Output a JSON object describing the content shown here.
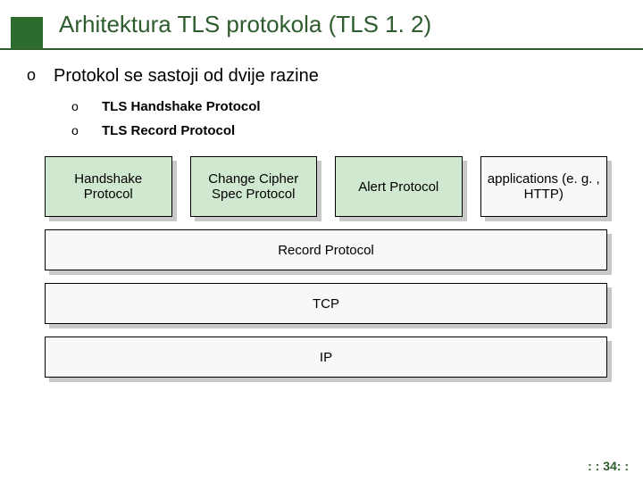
{
  "title": "Arhitektura TLS protokola (TLS 1. 2)",
  "main_bullet": "Protokol se sastoji od dvije razine",
  "sub_bullets": {
    "item1": "TLS Handshake Protocol",
    "item2": "TLS Record Protocol"
  },
  "diagram": {
    "top_row": {
      "box1": "Handshake Protocol",
      "box2": "Change Cipher Spec Protocol",
      "box3": "Alert Protocol",
      "box4": "applications (e. g. , HTTP)"
    },
    "layer1": "Record Protocol",
    "layer2": "TCP",
    "layer3": "IP"
  },
  "page_number": ": : 34: :",
  "colors": {
    "title_color": "#2e5c2e",
    "logo_bg": "#2e6b2e",
    "green_box": "#d0e8d0",
    "light_box": "#f8f8f8",
    "shadow": "#c8c8c8",
    "border": "#000000"
  },
  "fonts": {
    "title_size": 26,
    "bullet_size": 20,
    "sub_size": 15,
    "box_size": 15
  }
}
